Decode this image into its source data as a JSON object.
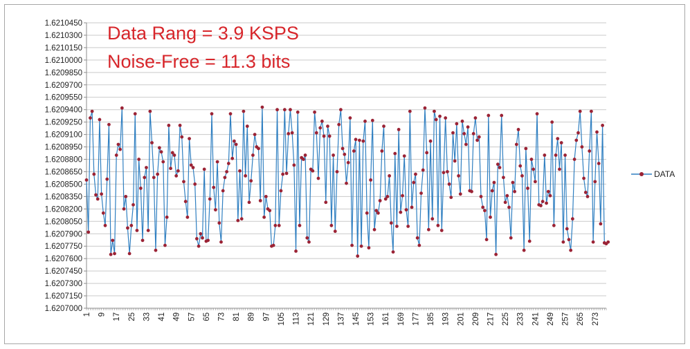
{
  "chart_data": {
    "type": "line",
    "title": "",
    "xlabel": "",
    "ylabel": "",
    "annotations": [
      "Data Rang = 3.9 KSPS",
      "Noise-Free =  11.3 bits"
    ],
    "ylim": [
      1.6207,
      1.621045
    ],
    "yticks": [
      "1.6210450",
      "1.6210300",
      "1.6210150",
      "1.6210000",
      "1.6209850",
      "1.6209700",
      "1.6209550",
      "1.6209400",
      "1.6209250",
      "1.6209100",
      "1.6208950",
      "1.6208800",
      "1.6208650",
      "1.6208500",
      "1.6208350",
      "1.6208200",
      "1.6208050",
      "1.6207900",
      "1.6207750",
      "1.6207600",
      "1.6207450",
      "1.6207300",
      "1.6207150",
      "1.6207000"
    ],
    "xlim": [
      1,
      279
    ],
    "xticks": [
      "1",
      "9",
      "17",
      "25",
      "33",
      "41",
      "49",
      "57",
      "65",
      "73",
      "81",
      "89",
      "97",
      "105",
      "113",
      "121",
      "129",
      "137",
      "145",
      "153",
      "161",
      "169",
      "177",
      "185",
      "193",
      "201",
      "209",
      "217",
      "225",
      "233",
      "241",
      "249",
      "257",
      "265",
      "273"
    ],
    "legend": {
      "position": "right",
      "entries": [
        "DATA"
      ]
    },
    "grid": "horizontal",
    "series_color": "#2f7fc1",
    "marker_color": "#9b2335",
    "series": [
      {
        "name": "DATA",
        "x_start": 1,
        "x_step": 1,
        "values": [
          1.620855,
          1.620792,
          1.62093,
          1.620938,
          1.620862,
          1.620837,
          1.620832,
          1.620928,
          1.620838,
          1.620815,
          1.6208,
          1.620856,
          1.620922,
          1.620765,
          1.620782,
          1.620766,
          1.620885,
          1.620898,
          1.620892,
          1.620942,
          1.62082,
          1.620835,
          1.620797,
          1.620766,
          1.6208,
          1.620825,
          1.620935,
          1.620794,
          1.62088,
          1.620845,
          1.620782,
          1.620858,
          1.62087,
          1.620794,
          1.620938,
          1.6209,
          1.620858,
          1.62077,
          1.620862,
          1.620894,
          1.620889,
          1.620877,
          1.620776,
          1.62081,
          1.620921,
          1.620869,
          1.620888,
          1.620885,
          1.62086,
          1.620866,
          1.620921,
          1.620907,
          1.620853,
          1.620829,
          1.62081,
          1.620905,
          1.620873,
          1.62087,
          1.62085,
          1.620784,
          1.620775,
          1.62079,
          1.620785,
          1.620868,
          1.620781,
          1.620782,
          1.620832,
          1.620935,
          1.620846,
          1.620819,
          1.620877,
          1.620803,
          1.62078,
          1.620842,
          1.620858,
          1.620865,
          1.620875,
          1.620935,
          1.620881,
          1.620902,
          1.620898,
          1.620806,
          1.620866,
          1.620808,
          1.620938,
          1.62086,
          1.62092,
          1.620828,
          1.620854,
          1.620885,
          1.62091,
          1.620895,
          1.620893,
          1.62083,
          1.620943,
          1.62081,
          1.620835,
          1.62082,
          1.620818,
          1.620775,
          1.620776,
          1.6208,
          1.62094,
          1.6208,
          1.620842,
          1.620862,
          1.62094,
          1.620863,
          1.620911,
          1.62094,
          1.620912,
          1.620873,
          1.620769,
          1.620937,
          1.6208,
          1.620882,
          1.62088,
          1.620885,
          1.620785,
          1.62078,
          1.620868,
          1.620866,
          1.620937,
          1.620912,
          1.620857,
          1.620918,
          1.620926,
          1.620908,
          1.620828,
          1.62092,
          1.620908,
          1.6208,
          1.620885,
          1.620793,
          1.620865,
          1.620922,
          1.62094,
          1.620893,
          1.620886,
          1.620851,
          1.620876,
          1.62093,
          1.620776,
          1.62089,
          1.620904,
          1.620763,
          1.620903,
          1.620775,
          1.620902,
          1.620926,
          1.620815,
          1.620773,
          1.620855,
          1.620927,
          1.620795,
          1.620818,
          1.620815,
          1.62083,
          1.62089,
          1.62092,
          1.620832,
          1.620835,
          1.62086,
          1.620803,
          1.620768,
          1.620887,
          1.620799,
          1.620916,
          1.620816,
          1.620836,
          1.620884,
          1.620819,
          1.620799,
          1.620938,
          1.620822,
          1.620852,
          1.620862,
          1.620785,
          1.620776,
          1.620839,
          1.620867,
          1.620942,
          1.620888,
          1.620795,
          1.620902,
          1.620808,
          1.620938,
          1.620928,
          1.6208,
          1.620932,
          1.620794,
          1.620864,
          1.62093,
          1.620865,
          1.62085,
          1.620834,
          1.620912,
          1.620878,
          1.620923,
          1.62086,
          1.620838,
          1.620926,
          1.620911,
          1.620898,
          1.620919,
          1.620842,
          1.620841,
          1.620911,
          1.62093,
          1.620903,
          1.620907,
          1.620835,
          1.620822,
          1.620818,
          1.620783,
          1.620933,
          1.62081,
          1.620842,
          1.620852,
          1.620765,
          1.620874,
          1.62087,
          1.620933,
          1.620858,
          1.620828,
          1.620836,
          1.620822,
          1.620785,
          1.620852,
          1.620841,
          1.620898,
          1.620916,
          1.620872,
          1.62086,
          1.62077,
          1.620893,
          1.620845,
          1.620781,
          1.62088,
          1.620868,
          1.620853,
          1.620935,
          1.620825,
          1.620824,
          1.620829,
          1.620885,
          1.620827,
          1.620841,
          1.620836,
          1.620925,
          1.6208,
          1.620885,
          1.620905,
          1.620868,
          1.6209,
          1.62078,
          1.620885,
          1.620796,
          1.620783,
          1.62077,
          1.620808,
          1.62088,
          1.620903,
          1.620912,
          1.620938,
          1.620895,
          1.620857,
          1.62084,
          1.620835,
          1.62089,
          1.620938,
          1.62078,
          1.620853,
          1.620913,
          1.620875,
          1.620802,
          1.620921,
          1.620779,
          1.620778,
          1.62078
        ]
      }
    ]
  }
}
